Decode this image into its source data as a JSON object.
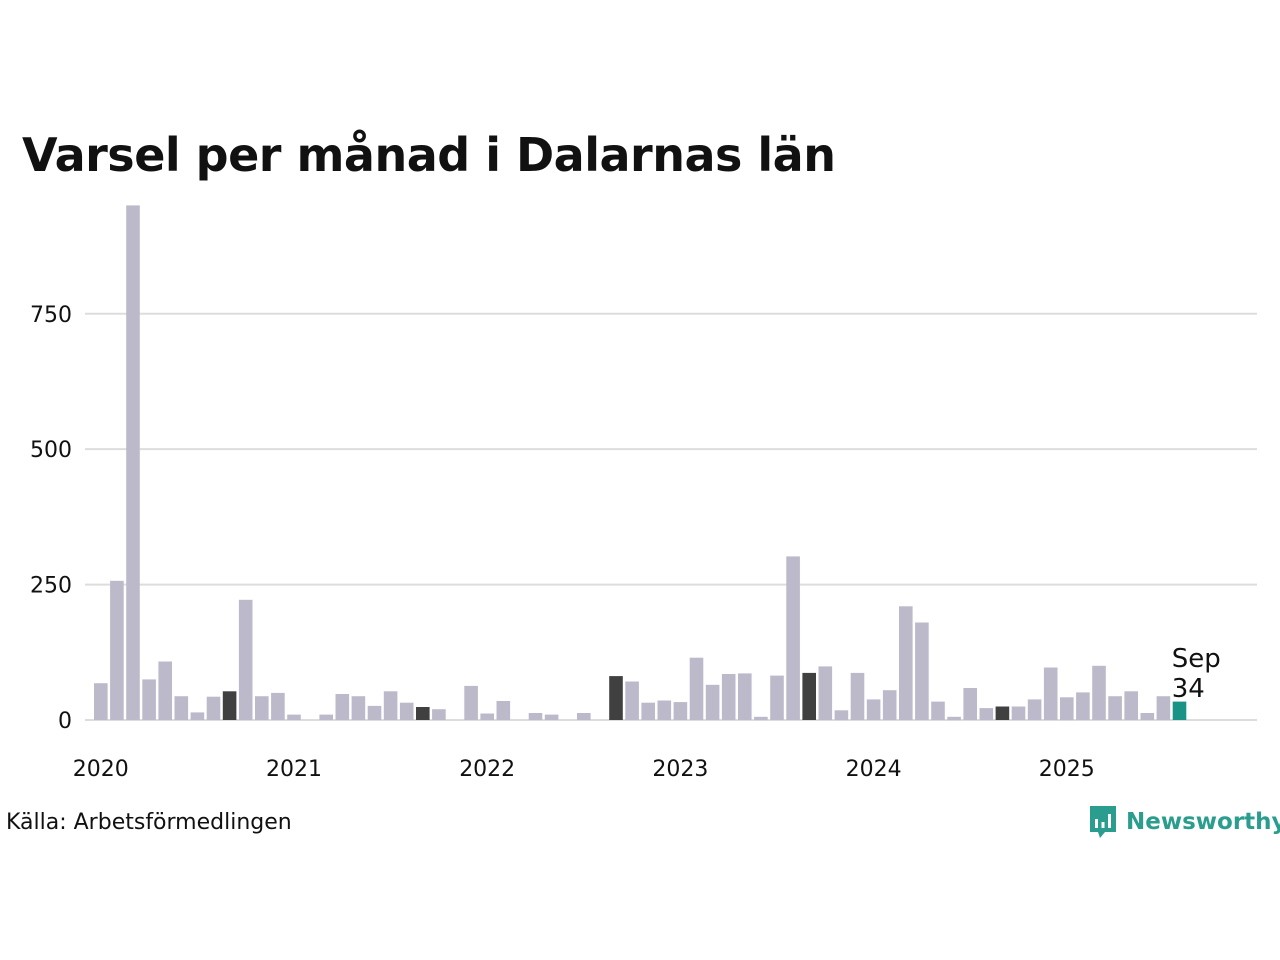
{
  "title": "Varsel per månad i Dalarnas län",
  "source": "Källa: Arbetsförmedlingen",
  "brand": {
    "name": "Newsworthy",
    "icon": "newsworthy-logo-icon"
  },
  "colors": {
    "default": "#bcbaca",
    "september": "#404040",
    "latest": "#1a9285",
    "grid": "#dddddd",
    "brand": "#2a9d8f"
  },
  "chart_data": {
    "type": "bar",
    "title": "Varsel per månad i Dalarnas län",
    "xlabel": "",
    "ylabel": "",
    "ylim": [
      0,
      960
    ],
    "yticks": [
      0,
      250,
      500,
      750
    ],
    "xtick_labels": [
      "2020",
      "2021",
      "2022",
      "2023",
      "2024",
      "2025"
    ],
    "start": "2020-01",
    "grid": true,
    "annotation": {
      "month": "Sep",
      "value": "34"
    },
    "values": [
      68,
      257,
      950,
      75,
      108,
      44,
      14,
      43,
      53,
      222,
      44,
      50,
      10,
      0,
      10,
      48,
      44,
      26,
      53,
      32,
      24,
      20,
      0,
      63,
      12,
      35,
      0,
      13,
      10,
      0,
      13,
      0,
      81,
      71,
      32,
      36,
      33,
      115,
      65,
      85,
      86,
      6,
      82,
      302,
      87,
      99,
      18,
      87,
      38,
      55,
      210,
      180,
      34,
      6,
      59,
      22,
      25,
      25,
      38,
      97,
      42,
      51,
      100,
      44,
      53,
      13,
      44,
      34
    ]
  }
}
